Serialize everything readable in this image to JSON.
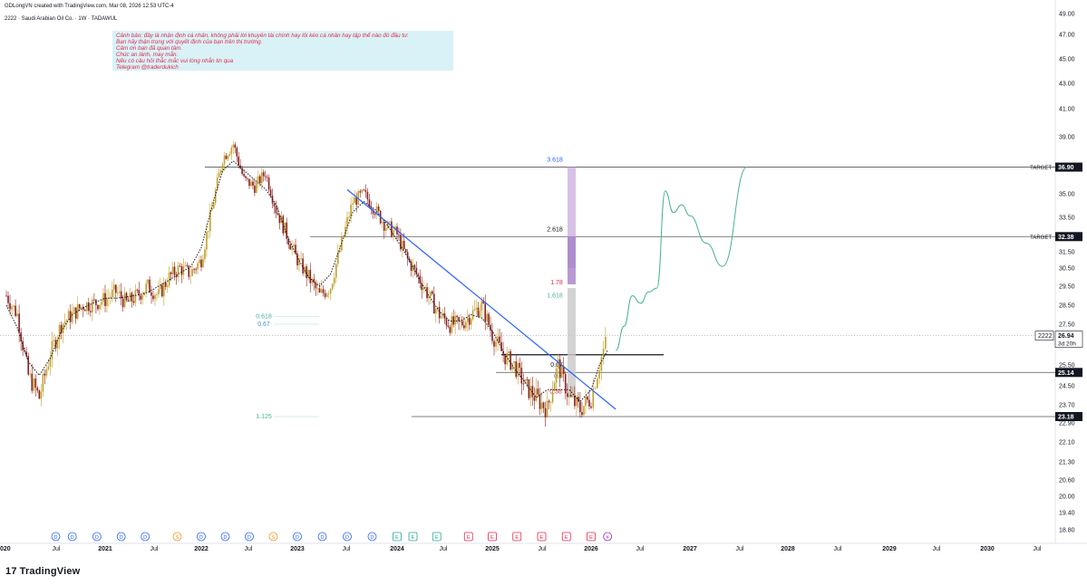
{
  "header": {
    "credit": "GDLongVN created with TradingView.com, Mar 08, 2026 12:53 UTC-4",
    "symbol_line": "2222 · Saudi Arabian Oil Co. · 1W · TADAWUL"
  },
  "warning": {
    "lines": [
      "Cảnh báo: đây là nhận định cá nhân, không phải lời khuyên tài chính hay lôi kéo cá nhân hay tập thể nào đó đầu tư.",
      "Bạn hãy thận trọng với quyết định của bạn trên thị trường.",
      "Cảm ơn bạn đã quan tâm.",
      "Chúc an lành, may mắn.",
      "Nếu có câu hỏi thắc mắc vui lòng nhắn tin qua",
      "Telegram @traderdukich"
    ]
  },
  "brand": {
    "logo_text": "TradingView",
    "logo_mark": "17"
  },
  "colors": {
    "candle": "#8a1f1f",
    "candle_up": "#c2a02a",
    "trendline": "#2962ff",
    "projection": "#46b09a",
    "fib_bar": "#c8a6dc",
    "fib_bar_grey": "#c8c8c8",
    "target_label": "#131722",
    "warning_text": "#e02a4b"
  },
  "chart_data": {
    "type": "candlestick",
    "symbol": "2222",
    "timeframe": "1W",
    "y_ticks": [
      "49.00",
      "47.00",
      "45.00",
      "43.00",
      "41.00",
      "39.00",
      "37.00",
      "35.00",
      "33.50",
      "31.50",
      "30.50",
      "29.50",
      "28.50",
      "27.50",
      "25.50",
      "24.50",
      "23.70",
      "22.90",
      "22.10",
      "21.30",
      "20.60",
      "20.00",
      "19.40",
      "18.80"
    ],
    "x_ticks": [
      "020",
      "Jul",
      "2021",
      "Jul",
      "2022",
      "Jul",
      "2023",
      "Jul",
      "2024",
      "Jul",
      "2025",
      "Jul",
      "2026",
      "Jul",
      "2027",
      "Jul",
      "2028",
      "Jul",
      "2029",
      "Jul",
      "2030",
      "Jul"
    ],
    "price_labels": [
      {
        "label": "TARGET",
        "value": "36.90"
      },
      {
        "label": "TARGET",
        "value": "32.38"
      },
      {
        "label": "2222",
        "value": "26.94",
        "sub": "3d 20h"
      },
      {
        "label": "",
        "value": "25.14"
      },
      {
        "label": "",
        "value": "23.18"
      }
    ],
    "fib_labels": [
      "3.618",
      "2.618",
      "1.78",
      "1.618",
      "0.67",
      "0.5",
      "0.38",
      "0.618",
      "0.67",
      "1.125"
    ],
    "horizontal_levels": [
      36.9,
      32.38,
      26.0,
      25.14,
      23.18
    ],
    "trend_start": [
      "2023-07",
      35.3
    ],
    "trend_end": [
      "2026-04",
      23.5
    ],
    "ohlc_weekly_close_approx": {
      "2020": [
        29.0,
        28.0,
        25.0,
        24.0,
        26.0,
        27.5,
        28.0,
        28.5,
        28.6
      ],
      "2021": [
        28.8,
        29.2,
        28.6,
        29.0,
        29.5,
        29.0,
        30.0,
        30.5,
        30.2
      ],
      "2022": [
        31.0,
        34.0,
        37.5,
        38.5,
        36.0,
        35.5,
        36.5,
        34.0,
        32.5
      ],
      "2023": [
        31.0,
        30.0,
        29.0,
        29.5,
        32.0,
        34.5,
        35.0,
        34.0,
        33.0
      ],
      "2024": [
        32.5,
        31.0,
        30.0,
        29.0,
        28.0,
        27.5,
        27.5,
        28.0,
        28.5
      ],
      "2025": [
        27.0,
        26.0,
        25.5,
        24.5,
        24.0,
        23.5,
        25.5,
        24.0,
        23.5
      ],
      "2026": [
        24.0,
        25.5,
        26.94
      ]
    },
    "projection_path": [
      [
        "2026-04",
        26.2
      ],
      [
        "2026-05",
        27.4
      ],
      [
        "2026-06",
        29.0
      ],
      [
        "2026-07",
        28.6
      ],
      [
        "2026-08",
        29.2
      ],
      [
        "2026-09",
        29.4
      ],
      [
        "2026-10",
        35.2
      ],
      [
        "2026-11",
        33.8
      ],
      [
        "2026-12",
        34.3
      ],
      [
        "2027-01",
        33.6
      ],
      [
        "2027-03",
        32.0
      ],
      [
        "2027-05",
        30.6
      ],
      [
        "2027-08",
        36.9
      ]
    ],
    "event_markers_x": [
      "2020-07",
      "2020-09",
      "2020-12",
      "2021-03",
      "2021-06",
      "2021-10",
      "2022-01",
      "2022-04",
      "2022-07",
      "2022-10",
      "2023-01",
      "2023-04",
      "2023-07",
      "2023-10",
      "2024-01",
      "2024-03",
      "2024-06",
      "2024-10",
      "2025-01",
      "2025-04",
      "2025-07",
      "2025-10",
      "2026-01",
      "2026-03"
    ],
    "grid": false
  }
}
